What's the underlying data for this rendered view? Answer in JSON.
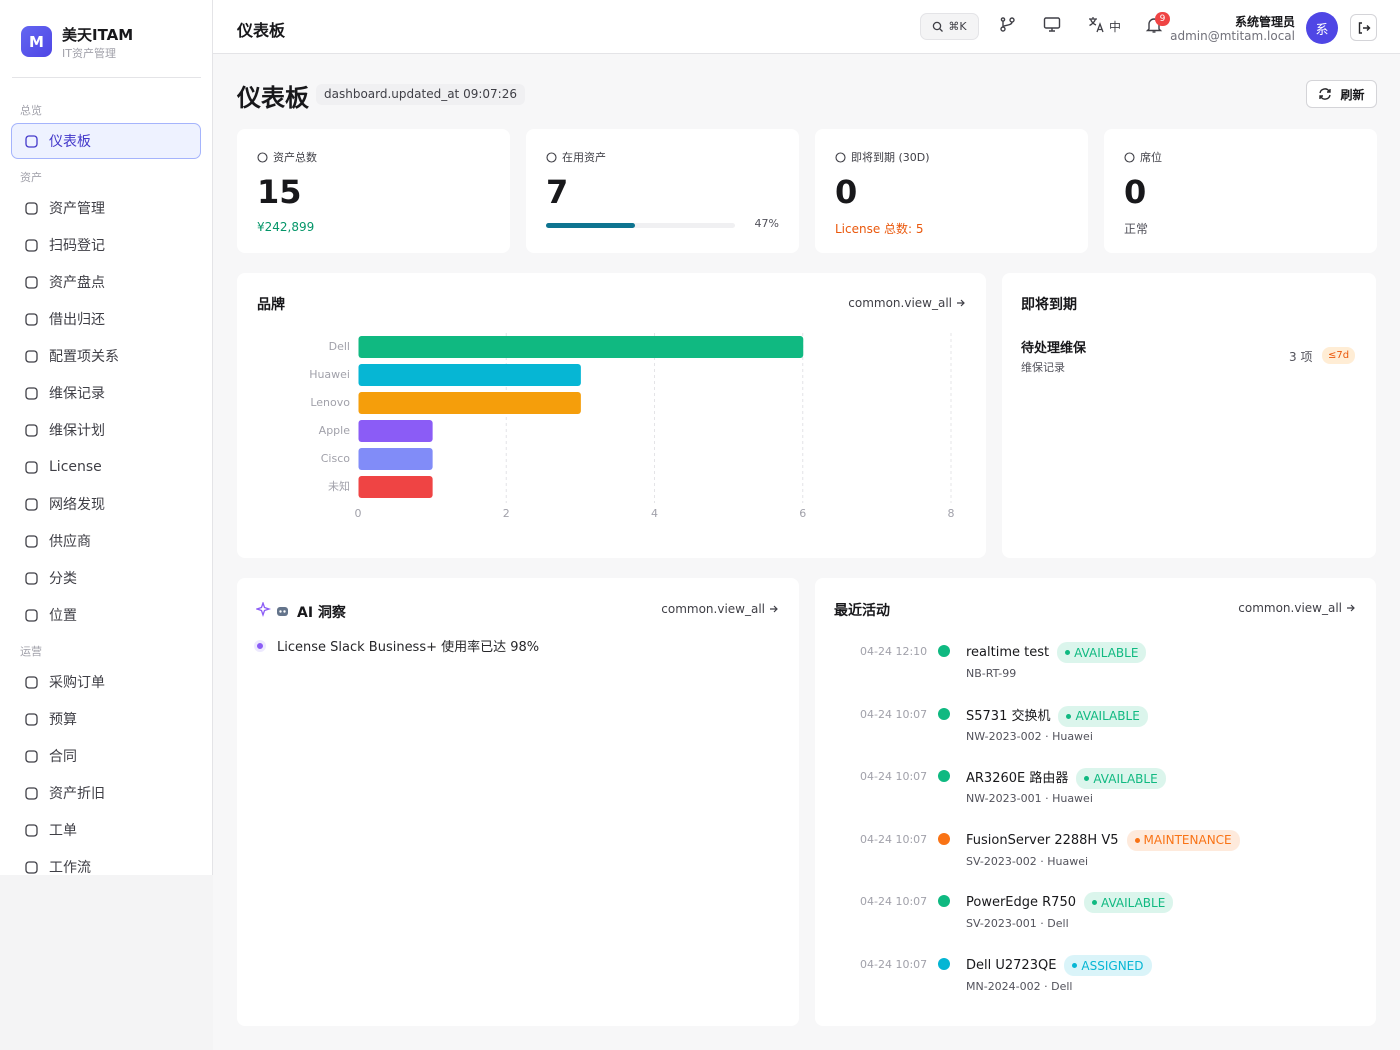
{
  "sidebar": {
    "logo": "M",
    "brand": "美天ITAM",
    "tagline": "IT资产管理",
    "groups": [
      {
        "label": "总览",
        "items": [
          "仪表板"
        ]
      },
      {
        "label": "资产",
        "items": [
          "资产管理",
          "扫码登记",
          "资产盘点",
          "借出归还",
          "配置项关系",
          "维保记录",
          "维保计划",
          "License",
          "网络发现",
          "供应商",
          "分类",
          "位置"
        ]
      },
      {
        "label": "运营",
        "items": [
          "采购订单",
          "预算",
          "合同",
          "资产折旧",
          "工单",
          "工作流"
        ]
      }
    ]
  },
  "header": {
    "title": "仪表板",
    "search_shortcut": "⌘K",
    "language": "中",
    "notifications": 9,
    "user_name": "系统管理员",
    "user_email": "admin@mtitam.local",
    "avatar": "系"
  },
  "page": {
    "title": "仪表板",
    "updated": "dashboard.updated_at 09:07:26",
    "refresh": "刷新"
  },
  "stats": [
    {
      "label": "资产总数",
      "value": 15,
      "note": "¥242,899",
      "note_color": "#059669"
    },
    {
      "label": "在用资产",
      "value": 7,
      "progress": 47,
      "progress_label": "47%",
      "progress_color": "#0e7490"
    },
    {
      "label": "即将到期 (30D)",
      "value": 0,
      "note": "License 总数: 5",
      "note_color": "#ea580c"
    },
    {
      "label": "席位",
      "value": 0,
      "note": "正常",
      "note_color": "#52525b"
    }
  ],
  "chart_data": {
    "type": "bar",
    "orientation": "horizontal",
    "title": "品牌",
    "link": "common.view_all",
    "categories": [
      "Dell",
      "Huawei",
      "Lenovo",
      "Apple",
      "Cisco",
      "未知"
    ],
    "values": [
      6,
      3,
      3,
      1,
      1,
      1
    ],
    "colors": [
      "#10b981",
      "#06b6d4",
      "#f59e0b",
      "#8b5cf6",
      "#818cf8",
      "#ef4444"
    ],
    "xlim": [
      0,
      8
    ],
    "xticks": [
      0,
      2,
      4,
      6,
      8
    ],
    "grid": true
  },
  "expiring": {
    "title": "即将到期",
    "items": [
      {
        "title": "待处理维保",
        "subtitle": "维保记录",
        "count": "3 项",
        "badge": "≤7d"
      }
    ]
  },
  "ai": {
    "title": "AI 洞察",
    "link": "common.view_all",
    "items": [
      "License Slack Business+ 使用率已达 98%"
    ]
  },
  "activity": {
    "title": "最近活动",
    "link": "common.view_all",
    "items": [
      {
        "time": "04-24 12:10",
        "name": "realtime test",
        "status": "AVAILABLE",
        "detail": "NB-RT-99",
        "color": "#10b981"
      },
      {
        "time": "04-24 10:07",
        "name": "S5731 交换机",
        "status": "AVAILABLE",
        "detail": "NW-2023-002 · Huawei",
        "color": "#10b981"
      },
      {
        "time": "04-24 10:07",
        "name": "AR3260E 路由器",
        "status": "AVAILABLE",
        "detail": "NW-2023-001 · Huawei",
        "color": "#10b981"
      },
      {
        "time": "04-24 10:07",
        "name": "FusionServer 2288H V5",
        "status": "MAINTENANCE",
        "detail": "SV-2023-002 · Huawei",
        "color": "#f97316"
      },
      {
        "time": "04-24 10:07",
        "name": "PowerEdge R750",
        "status": "AVAILABLE",
        "detail": "SV-2023-001 · Dell",
        "color": "#10b981"
      },
      {
        "time": "04-24 10:07",
        "name": "Dell U2723QE",
        "status": "ASSIGNED",
        "detail": "MN-2024-002 · Dell",
        "color": "#06b6d4"
      }
    ]
  }
}
